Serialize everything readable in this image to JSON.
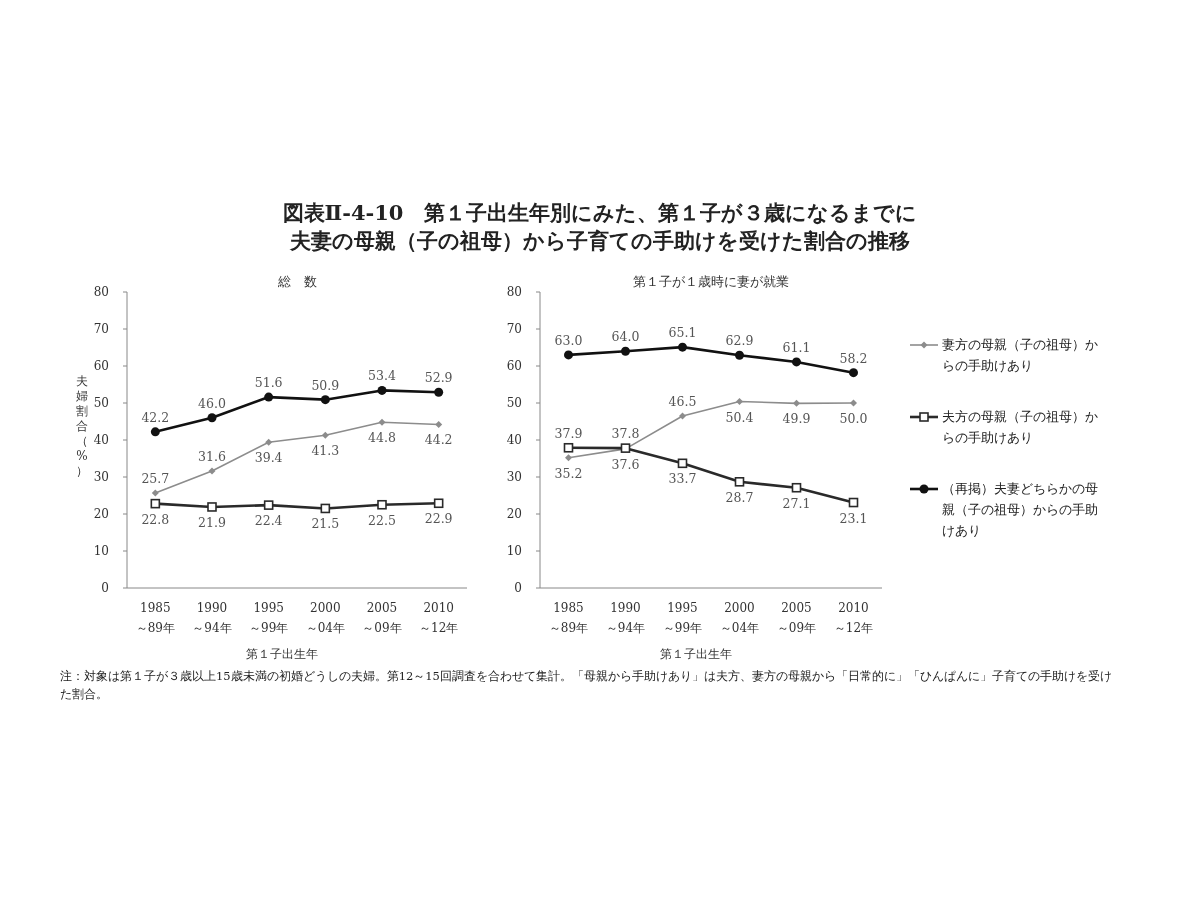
{
  "chart_data": [
    {
      "type": "line",
      "title": "図表Ⅱ-4-10　第１子出生年別にみた、第１子が３歳になるまでに夫妻の母親（子の祖母）から子育ての手助けを受けた割合の推移",
      "subtitle": "総　数",
      "xlabel": "第１子出生年",
      "ylabel": "夫婦割合（%）",
      "categories": [
        "1985～89年",
        "1990～94年",
        "1995～99年",
        "2000～04年",
        "2005～09年",
        "2010～12年"
      ],
      "ylim": [
        0,
        80
      ],
      "yticks": [
        0,
        10,
        20,
        30,
        40,
        50,
        60,
        70,
        80
      ],
      "legend": false,
      "annotations": [
        "注：対象は第１子が３歳以上15歳未満の初婚どうしの夫婦。第12～15回調査を合わせて集計。「母親から手助けあり」は夫方、妻方の母親から「日常的に」「ひんぱんに」子育ての手助けを受けた割合。"
      ],
      "series": [
        {
          "color": "#8c8c8c",
          "marker": "diamond",
          "values": [
            25.7,
            31.6,
            39.4,
            41.3,
            44.8,
            44.2
          ],
          "value_labels": [
            "25.7",
            "31.6",
            "39.4",
            "41.3",
            "44.8",
            "44.2"
          ]
        },
        {
          "color": "#2a2a2a",
          "marker": "square",
          "values": [
            22.8,
            21.9,
            22.4,
            21.5,
            22.5,
            22.9
          ],
          "value_labels": [
            "22.8",
            "21.9",
            "22.4",
            "21.5",
            "22.5",
            "22.9"
          ]
        },
        {
          "color": "#111111",
          "marker": "circle",
          "values": [
            42.2,
            46.0,
            51.6,
            50.9,
            53.4,
            52.9
          ],
          "value_labels": [
            "42.2",
            "46.0",
            "51.6",
            "50.9",
            "53.4",
            "52.9"
          ]
        }
      ]
    },
    {
      "type": "line",
      "subtitle": "第１子が１歳時に妻が就業",
      "xlabel": "第１子出生年",
      "categories": [
        "1985～89年",
        "1990～94年",
        "1995～99年",
        "2000～04年",
        "2005～09年",
        "2010～12年"
      ],
      "ylim": [
        0,
        80
      ],
      "yticks": [
        0,
        10,
        20,
        30,
        40,
        50,
        60,
        70,
        80
      ],
      "legend": "right",
      "series": [
        {
          "name": "妻方の母親（子の祖母）からの手助けあり",
          "color": "#8c8c8c",
          "marker": "diamond",
          "values": [
            35.2,
            37.6,
            46.5,
            50.4,
            49.9,
            50.0
          ],
          "value_labels": [
            "35.2",
            "37.6",
            "46.5",
            "50.4",
            "49.9",
            "50.0"
          ]
        },
        {
          "name": "夫方の母親（子の祖母）からの手助けあり",
          "color": "#2a2a2a",
          "marker": "square",
          "values": [
            37.9,
            37.8,
            33.7,
            28.7,
            27.1,
            23.1
          ],
          "value_labels": [
            "37.9",
            "37.8",
            "33.7",
            "28.7",
            "27.1",
            "23.1"
          ]
        },
        {
          "name": "（再掲）夫妻どちらかの母親（子の祖母）からの手助けあり",
          "color": "#111111",
          "marker": "circle",
          "values": [
            63.0,
            64.0,
            65.1,
            62.9,
            61.1,
            58.2
          ],
          "value_labels": [
            "63.0",
            "64.0",
            "65.1",
            "62.9",
            "61.1",
            "58.2"
          ]
        }
      ]
    }
  ]
}
